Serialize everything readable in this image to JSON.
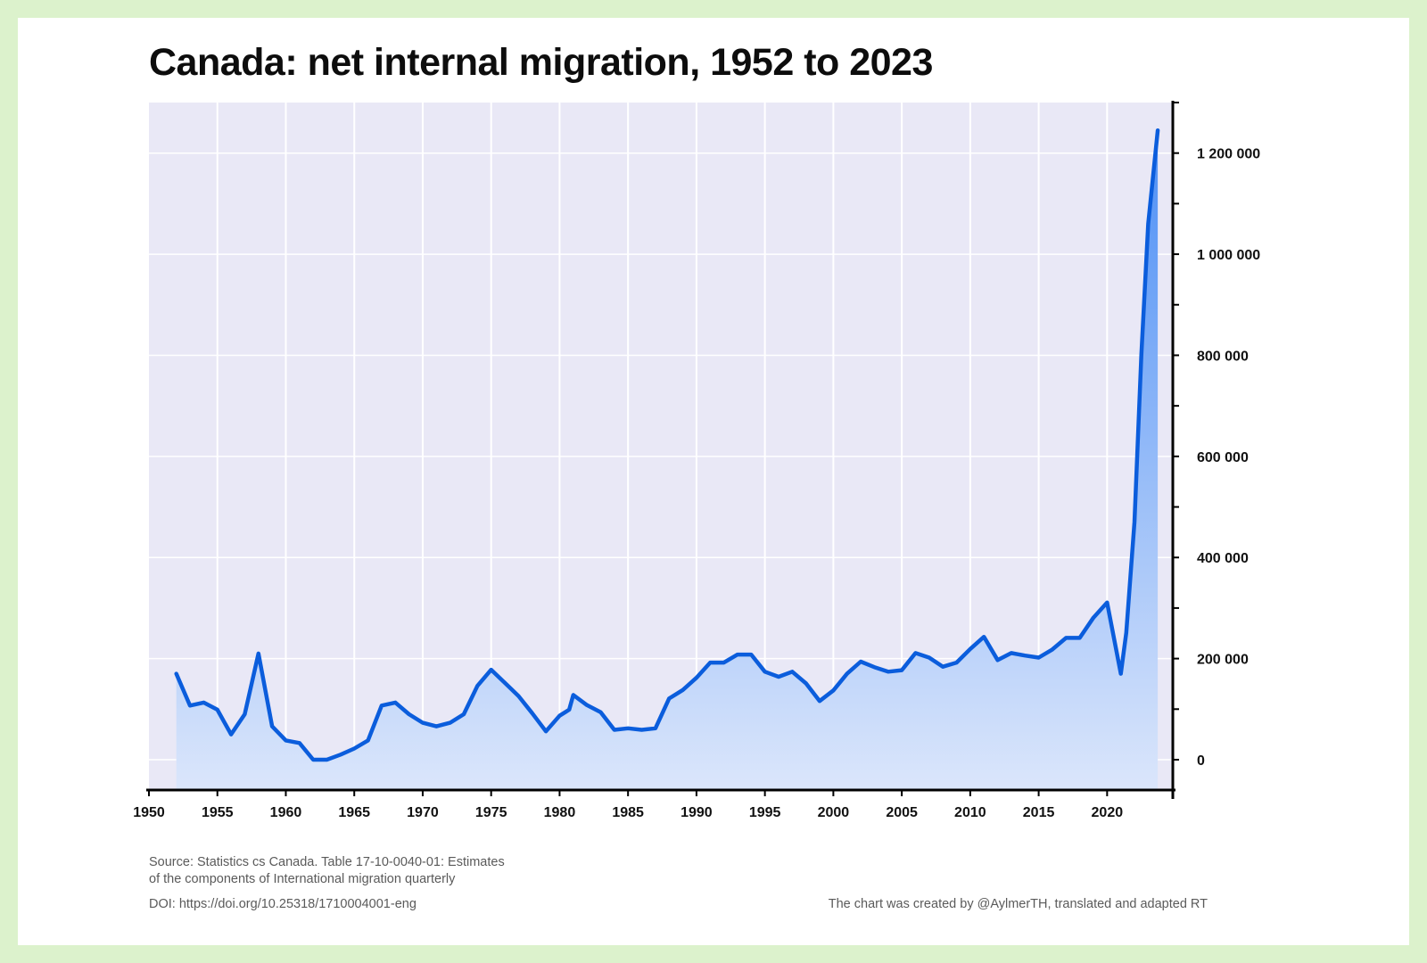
{
  "title": "Canada: net internal migration, 1952 to 2023",
  "footer": {
    "source_line1": "Source: Statistics cs Canada. Table 17-10-0040-01: Estimates",
    "source_line2": "of the components of International migration quarterly",
    "doi": "DOI: https://doi.org/10.25318/1710004001-eng",
    "credit": "The chart was created by @AylmerTH, translated and adapted RT"
  },
  "colors": {
    "line": "#0b5ddc",
    "plot_background": "#e9e8f6",
    "fill_top": "#4d8ff5",
    "fill_bottom": "#dbe6fb",
    "frame": "#dcf2cc"
  },
  "chart_data": {
    "type": "area",
    "title": "Canada: net internal migration, 1952 to 2023",
    "xlabel": "",
    "ylabel": "",
    "xlim": [
      1950,
      2024.8
    ],
    "ylim": [
      -60000,
      1300000
    ],
    "grid": true,
    "y_axis_position": "right",
    "x_ticks": [
      1950,
      1955,
      1960,
      1965,
      1970,
      1975,
      1980,
      1985,
      1990,
      1995,
      2000,
      2005,
      2010,
      2015,
      2020
    ],
    "x_tick_labels": [
      "1950",
      "1955",
      "1960",
      "1965",
      "1970",
      "1975",
      "1980",
      "1985",
      "1990",
      "1995",
      "2000",
      "2005",
      "2010",
      "2015",
      "2020"
    ],
    "y_ticks": [
      0,
      200000,
      400000,
      600000,
      800000,
      1000000,
      1200000
    ],
    "y_tick_labels": [
      "0",
      "200 000",
      "400 000",
      "600 000",
      "800 000",
      "1 000 000",
      "1 200 000"
    ],
    "y_minor_ticks": [
      100000,
      300000,
      500000,
      700000,
      900000,
      1100000,
      1300000
    ],
    "series": [
      {
        "name": "Net internal migration",
        "x": [
          1952,
          1953,
          1954,
          1955,
          1956,
          1957,
          1958,
          1959,
          1960,
          1961,
          1962,
          1963,
          1964,
          1965,
          1966,
          1967,
          1968,
          1969,
          1970,
          1971,
          1972,
          1973,
          1974,
          1975,
          1976,
          1977,
          1978,
          1979,
          1980,
          1980.7,
          1981,
          1982,
          1983,
          1984,
          1985,
          1986,
          1987,
          1988,
          1989,
          1990,
          1991,
          1992,
          1993,
          1994,
          1995,
          1996,
          1997,
          1998,
          1999,
          2000,
          2001,
          2002,
          2003,
          2004,
          2005,
          2006,
          2007,
          2008,
          2009,
          2010,
          2011,
          2012,
          2013,
          2014,
          2015,
          2016,
          2017,
          2018,
          2019,
          2020,
          2021,
          2021.4,
          2022,
          2022.5,
          2023,
          2023.7
        ],
        "values": [
          170000,
          107000,
          113000,
          99000,
          50000,
          90000,
          210000,
          66000,
          38000,
          33000,
          0,
          0,
          10000,
          22000,
          38000,
          107000,
          113000,
          90000,
          73000,
          66000,
          73000,
          90000,
          146000,
          178000,
          152000,
          126000,
          92000,
          56000,
          87000,
          99000,
          128000,
          108000,
          94000,
          59000,
          62000,
          59000,
          62000,
          121000,
          138000,
          162000,
          192000,
          192000,
          208000,
          208000,
          174000,
          164000,
          174000,
          151000,
          116000,
          137000,
          170000,
          194000,
          183000,
          174000,
          177000,
          211000,
          202000,
          184000,
          192000,
          219000,
          243000,
          197000,
          211000,
          206000,
          202000,
          218000,
          241000,
          241000,
          281000,
          311000,
          170000,
          251000,
          470000,
          800000,
          1060000,
          1245000
        ]
      }
    ]
  }
}
